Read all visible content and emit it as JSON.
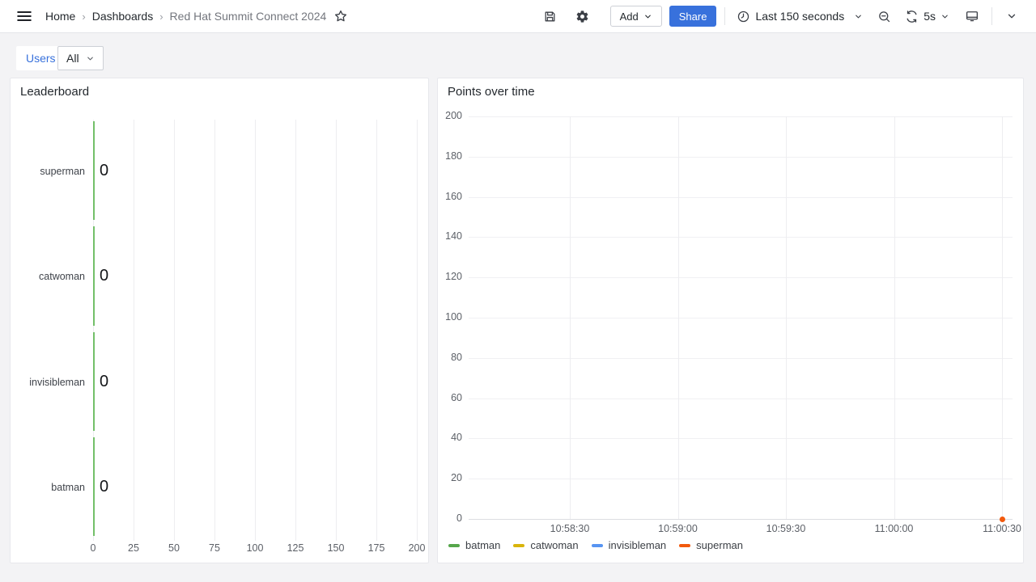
{
  "header": {
    "breadcrumb": [
      "Home",
      "Dashboards",
      "Red Hat Summit Connect 2024"
    ],
    "add_button": "Add",
    "share_button": "Share",
    "time_range": "Last 150 seconds",
    "refresh_interval": "5s"
  },
  "filters": {
    "users_label": "Users",
    "users_value": "All"
  },
  "colors": {
    "accent_blue": "#3871DC",
    "bar_green": "#73BF69",
    "batman": "#56A64B",
    "catwoman": "#D9B40B",
    "invisibleman": "#5794F2",
    "superman": "#F2590D"
  },
  "chart_data": [
    {
      "type": "bar",
      "orientation": "horizontal",
      "title": "Leaderboard",
      "categories": [
        "superman",
        "catwoman",
        "invisibleman",
        "batman"
      ],
      "values": [
        0,
        0,
        0,
        0
      ],
      "xlabel": "",
      "ylabel": "",
      "xlim": [
        0,
        200
      ],
      "x_ticks": [
        0,
        25,
        50,
        75,
        100,
        125,
        150,
        175,
        200
      ],
      "bar_color": "#73BF69",
      "grid": true
    },
    {
      "type": "line",
      "title": "Points over time",
      "xlabel": "",
      "ylabel": "",
      "ylim": [
        0,
        200
      ],
      "y_ticks": [
        0,
        20,
        40,
        60,
        80,
        100,
        120,
        140,
        160,
        180,
        200
      ],
      "x_tick_labels": [
        "10:58:30",
        "10:59:00",
        "10:59:30",
        "11:00:00",
        "11:00:30"
      ],
      "grid": true,
      "legend_position": "bottom",
      "series": [
        {
          "name": "batman",
          "color": "#56A64B",
          "points": []
        },
        {
          "name": "catwoman",
          "color": "#D9B40B",
          "points": []
        },
        {
          "name": "invisibleman",
          "color": "#5794F2",
          "points": []
        },
        {
          "name": "superman",
          "color": "#F2590D",
          "points": [
            {
              "x": "11:00:30",
              "y": 0
            }
          ]
        }
      ]
    }
  ]
}
